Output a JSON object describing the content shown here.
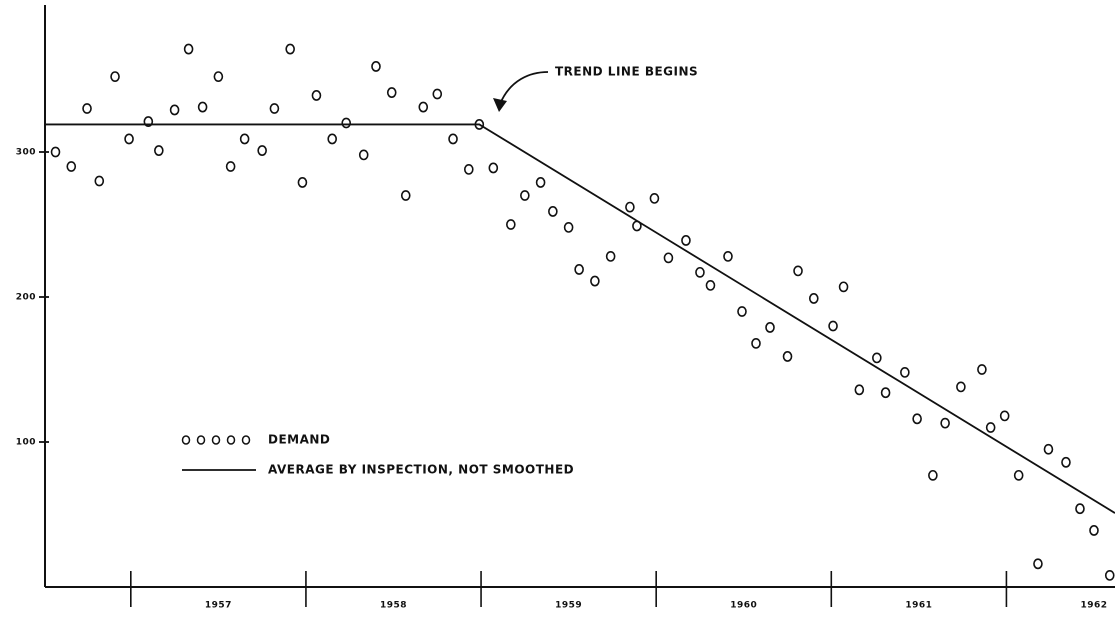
{
  "chart_data": {
    "type": "scatter",
    "annotation": "TREND LINE BEGINS",
    "categories": [
      "1957",
      "1958",
      "1959",
      "1960",
      "1961",
      "1962"
    ],
    "xlim": [
      1956.51,
      1962.62
    ],
    "xticks": [
      1957,
      1958,
      1959,
      1960,
      1961,
      1962
    ],
    "ylim": [
      0,
      400
    ],
    "yticks": [
      100,
      200,
      300
    ],
    "grid": false,
    "series": [
      {
        "name": "DEMAND",
        "style": "points",
        "color": "#111111",
        "x": [
          1956.57,
          1956.66,
          1956.75,
          1956.82,
          1956.91,
          1956.99,
          1957.1,
          1957.16,
          1957.25,
          1957.33,
          1957.41,
          1957.5,
          1957.57,
          1957.65,
          1957.75,
          1957.82,
          1957.91,
          1957.98,
          1958.06,
          1958.15,
          1958.23,
          1958.33,
          1958.4,
          1958.49,
          1958.57,
          1958.67,
          1958.75,
          1958.84,
          1958.93,
          1958.99,
          1959.07,
          1959.17,
          1959.25,
          1959.34,
          1959.41,
          1959.5,
          1959.56,
          1959.65,
          1959.74,
          1959.85,
          1959.89,
          1959.99,
          1960.07,
          1960.17,
          1960.25,
          1960.31,
          1960.41,
          1960.49,
          1960.57,
          1960.65,
          1960.75,
          1960.81,
          1960.9,
          1961.01,
          1961.07,
          1961.16,
          1961.26,
          1961.31,
          1961.42,
          1961.49,
          1961.58,
          1961.65,
          1961.74,
          1961.86,
          1961.91,
          1961.99,
          1962.07,
          1962.18,
          1962.24,
          1962.34,
          1962.42,
          1962.5,
          1962.59
        ],
        "values": [
          300,
          290,
          330,
          280,
          352,
          309,
          321,
          301,
          329,
          371,
          331,
          352,
          290,
          309,
          301,
          330,
          371,
          279,
          339,
          309,
          320,
          298,
          359,
          341,
          270,
          331,
          340,
          309,
          288,
          319,
          289,
          250,
          270,
          279,
          259,
          248,
          219,
          211,
          228,
          262,
          249,
          268,
          227,
          239,
          217,
          208,
          228,
          190,
          168,
          179,
          159,
          218,
          199,
          180,
          207,
          136,
          158,
          134,
          148,
          116,
          77,
          113,
          138,
          150,
          110,
          118,
          77,
          16,
          95,
          86,
          54,
          39,
          8
        ]
      },
      {
        "name": "AVERAGE BY INSPECTION, NOT SMOOTHED",
        "style": "line",
        "color": "#111111",
        "x": [
          1956.51,
          1958.99,
          1962.62
        ],
        "values": [
          319,
          319,
          51
        ]
      }
    ]
  }
}
